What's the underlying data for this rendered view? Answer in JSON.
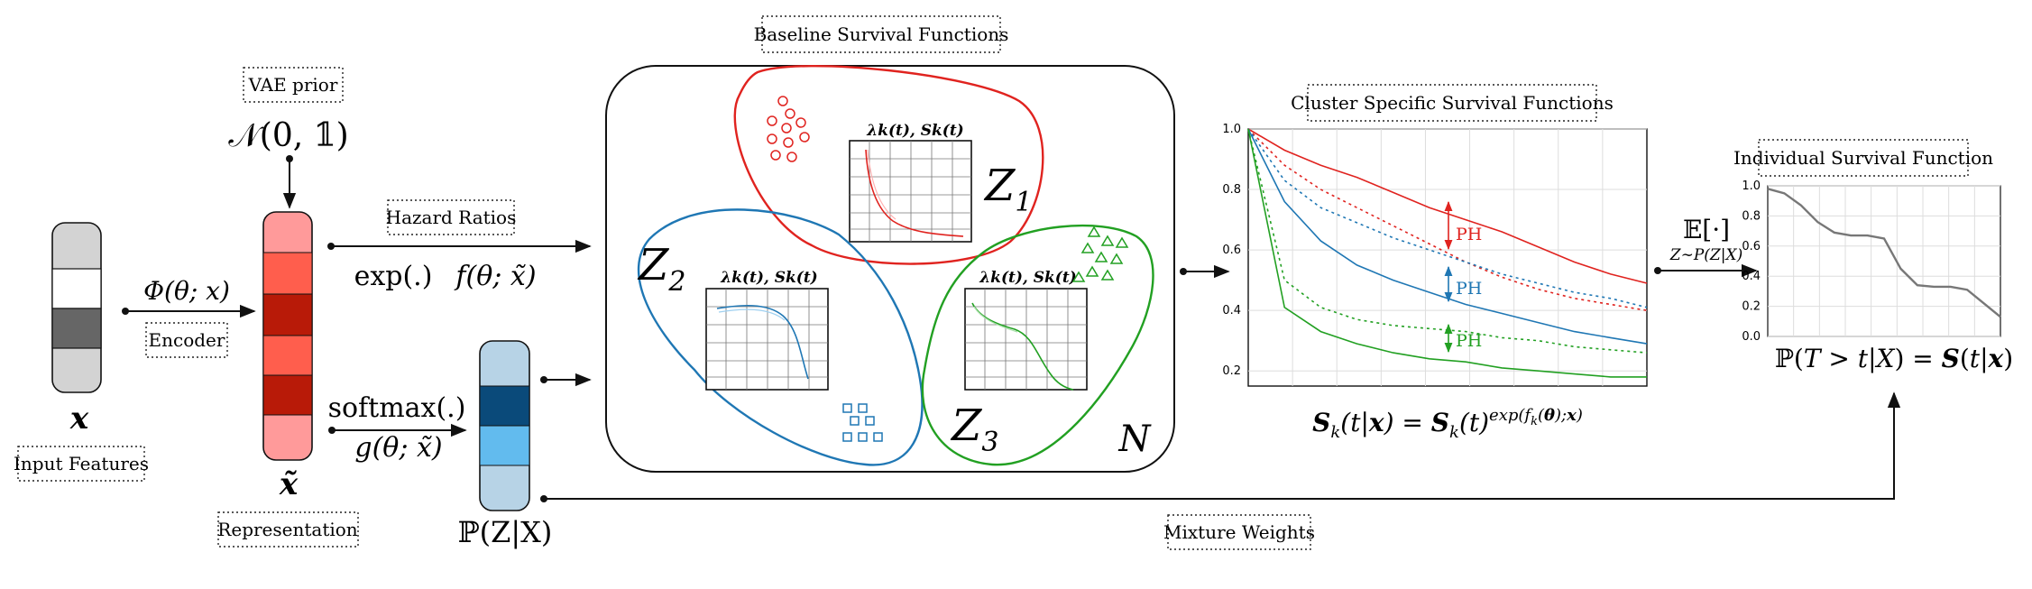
{
  "labels": {
    "baseline_title": "Baseline Survival Functions",
    "cluster_title": "Cluster Specific Survival Functions",
    "individual_title": "Individual Survival Function",
    "vae_prior": "VAE prior",
    "hazard_ratios": "Hazard Ratios",
    "encoder": "Encoder",
    "input_features": "Input Features",
    "representation": "Representation",
    "mixture_weights": "Mixture Weights"
  },
  "math": {
    "prior": "𝒩(0, 𝟙)",
    "encoder_fn": "Φ(θ; x)",
    "input_var": "x",
    "repr_var": "x̃",
    "exp_op": "exp(.)",
    "f_fn": "f(θ; x̃)",
    "softmax_op": "softmax(.)",
    "g_fn": "g(θ; x̃)",
    "mixture_prob": "ℙ(Z|X)",
    "lambda_s": "λk(t), Sk(t)",
    "z1": "Z1",
    "z2": "Z2",
    "z3": "Z3",
    "n": "N",
    "ph": "PH",
    "cluster_formula": "Sk(t|x) = Sk(t)exp(fk(θ);x)",
    "expectation": "𝔼[·]",
    "expectation_sub": "Z∼P(Z|X)",
    "individual_formula": "ℙ(T > t|X) = S(t|x)"
  },
  "colors": {
    "red": "#e0231f",
    "blue": "#1f77b4",
    "green": "#22a022",
    "input_gray": "#d3d3d3",
    "input_dark": "#666666",
    "repr_light": "#ff9a9a",
    "repr_mid": "#ff5e4d",
    "repr_dark": "#b81a08",
    "mix_light": "#b7d3e6",
    "mix_dark": "#0a4a7a",
    "mix_mid": "#62bbee"
  },
  "chart_data": [
    {
      "type": "line",
      "title": "",
      "ylim": [
        0.15,
        1.0
      ],
      "y_ticks": [
        "1.0",
        "0.8",
        "0.6",
        "0.4",
        "0.2"
      ],
      "grid": true,
      "series": [
        {
          "color": "red",
          "style": "solid",
          "values": [
            1.0,
            0.93,
            0.88,
            0.84,
            0.79,
            0.74,
            0.7,
            0.66,
            0.61,
            0.56,
            0.52,
            0.49
          ]
        },
        {
          "color": "red",
          "style": "dotted",
          "values": [
            1.0,
            0.88,
            0.8,
            0.74,
            0.68,
            0.62,
            0.56,
            0.51,
            0.47,
            0.44,
            0.42,
            0.4
          ]
        },
        {
          "color": "blue",
          "style": "dotted",
          "values": [
            1.0,
            0.83,
            0.74,
            0.69,
            0.64,
            0.6,
            0.56,
            0.52,
            0.49,
            0.46,
            0.44,
            0.41
          ]
        },
        {
          "color": "blue",
          "style": "solid",
          "values": [
            1.0,
            0.76,
            0.63,
            0.55,
            0.5,
            0.46,
            0.42,
            0.39,
            0.36,
            0.33,
            0.31,
            0.29
          ]
        },
        {
          "color": "green",
          "style": "dotted",
          "values": [
            1.0,
            0.5,
            0.41,
            0.37,
            0.35,
            0.34,
            0.33,
            0.31,
            0.3,
            0.28,
            0.27,
            0.26
          ]
        },
        {
          "color": "green",
          "style": "solid",
          "values": [
            1.0,
            0.41,
            0.33,
            0.29,
            0.26,
            0.24,
            0.23,
            0.21,
            0.2,
            0.19,
            0.18,
            0.18
          ]
        }
      ]
    },
    {
      "type": "line",
      "title": "",
      "ylim": [
        0.0,
        1.0
      ],
      "y_ticks": [
        "1.0",
        "0.8",
        "0.6",
        "0.4",
        "0.2",
        "0.0"
      ],
      "grid": true,
      "series": [
        {
          "color": "gray",
          "style": "solid",
          "values": [
            0.98,
            0.95,
            0.87,
            0.76,
            0.69,
            0.67,
            0.67,
            0.65,
            0.45,
            0.34,
            0.33,
            0.33,
            0.31,
            0.22,
            0.13
          ]
        }
      ]
    }
  ]
}
